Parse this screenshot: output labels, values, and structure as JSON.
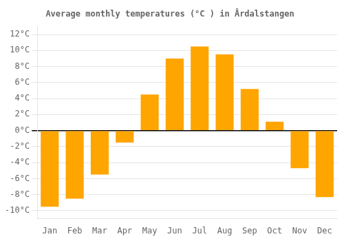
{
  "chart_data": {
    "type": "bar",
    "title": "Average monthly temperatures (°C ) in Årdalstangen",
    "categories": [
      "Jan",
      "Feb",
      "Mar",
      "Apr",
      "May",
      "Jun",
      "Jul",
      "Aug",
      "Sep",
      "Oct",
      "Nov",
      "Dec"
    ],
    "values": [
      -9.5,
      -8.5,
      -5.5,
      -1.5,
      4.5,
      9.0,
      10.5,
      9.5,
      5.2,
      1.1,
      -4.7,
      -8.3
    ],
    "color": "#FFA500",
    "ylim": [
      -11,
      13
    ],
    "yticks": [
      {
        "value": -10,
        "label": "-10°C"
      },
      {
        "value": -8,
        "label": "-8°C"
      },
      {
        "value": -6,
        "label": "-6°C"
      },
      {
        "value": -4,
        "label": "-4°C"
      },
      {
        "value": -2,
        "label": "-2°C"
      },
      {
        "value": 0,
        "label": "0°C"
      },
      {
        "value": 2,
        "label": "2°C"
      },
      {
        "value": 4,
        "label": "4°C"
      },
      {
        "value": 6,
        "label": "6°C"
      },
      {
        "value": 8,
        "label": "8°C"
      },
      {
        "value": 10,
        "label": "10°C"
      },
      {
        "value": 12,
        "label": "12°C"
      }
    ],
    "grid": true
  }
}
